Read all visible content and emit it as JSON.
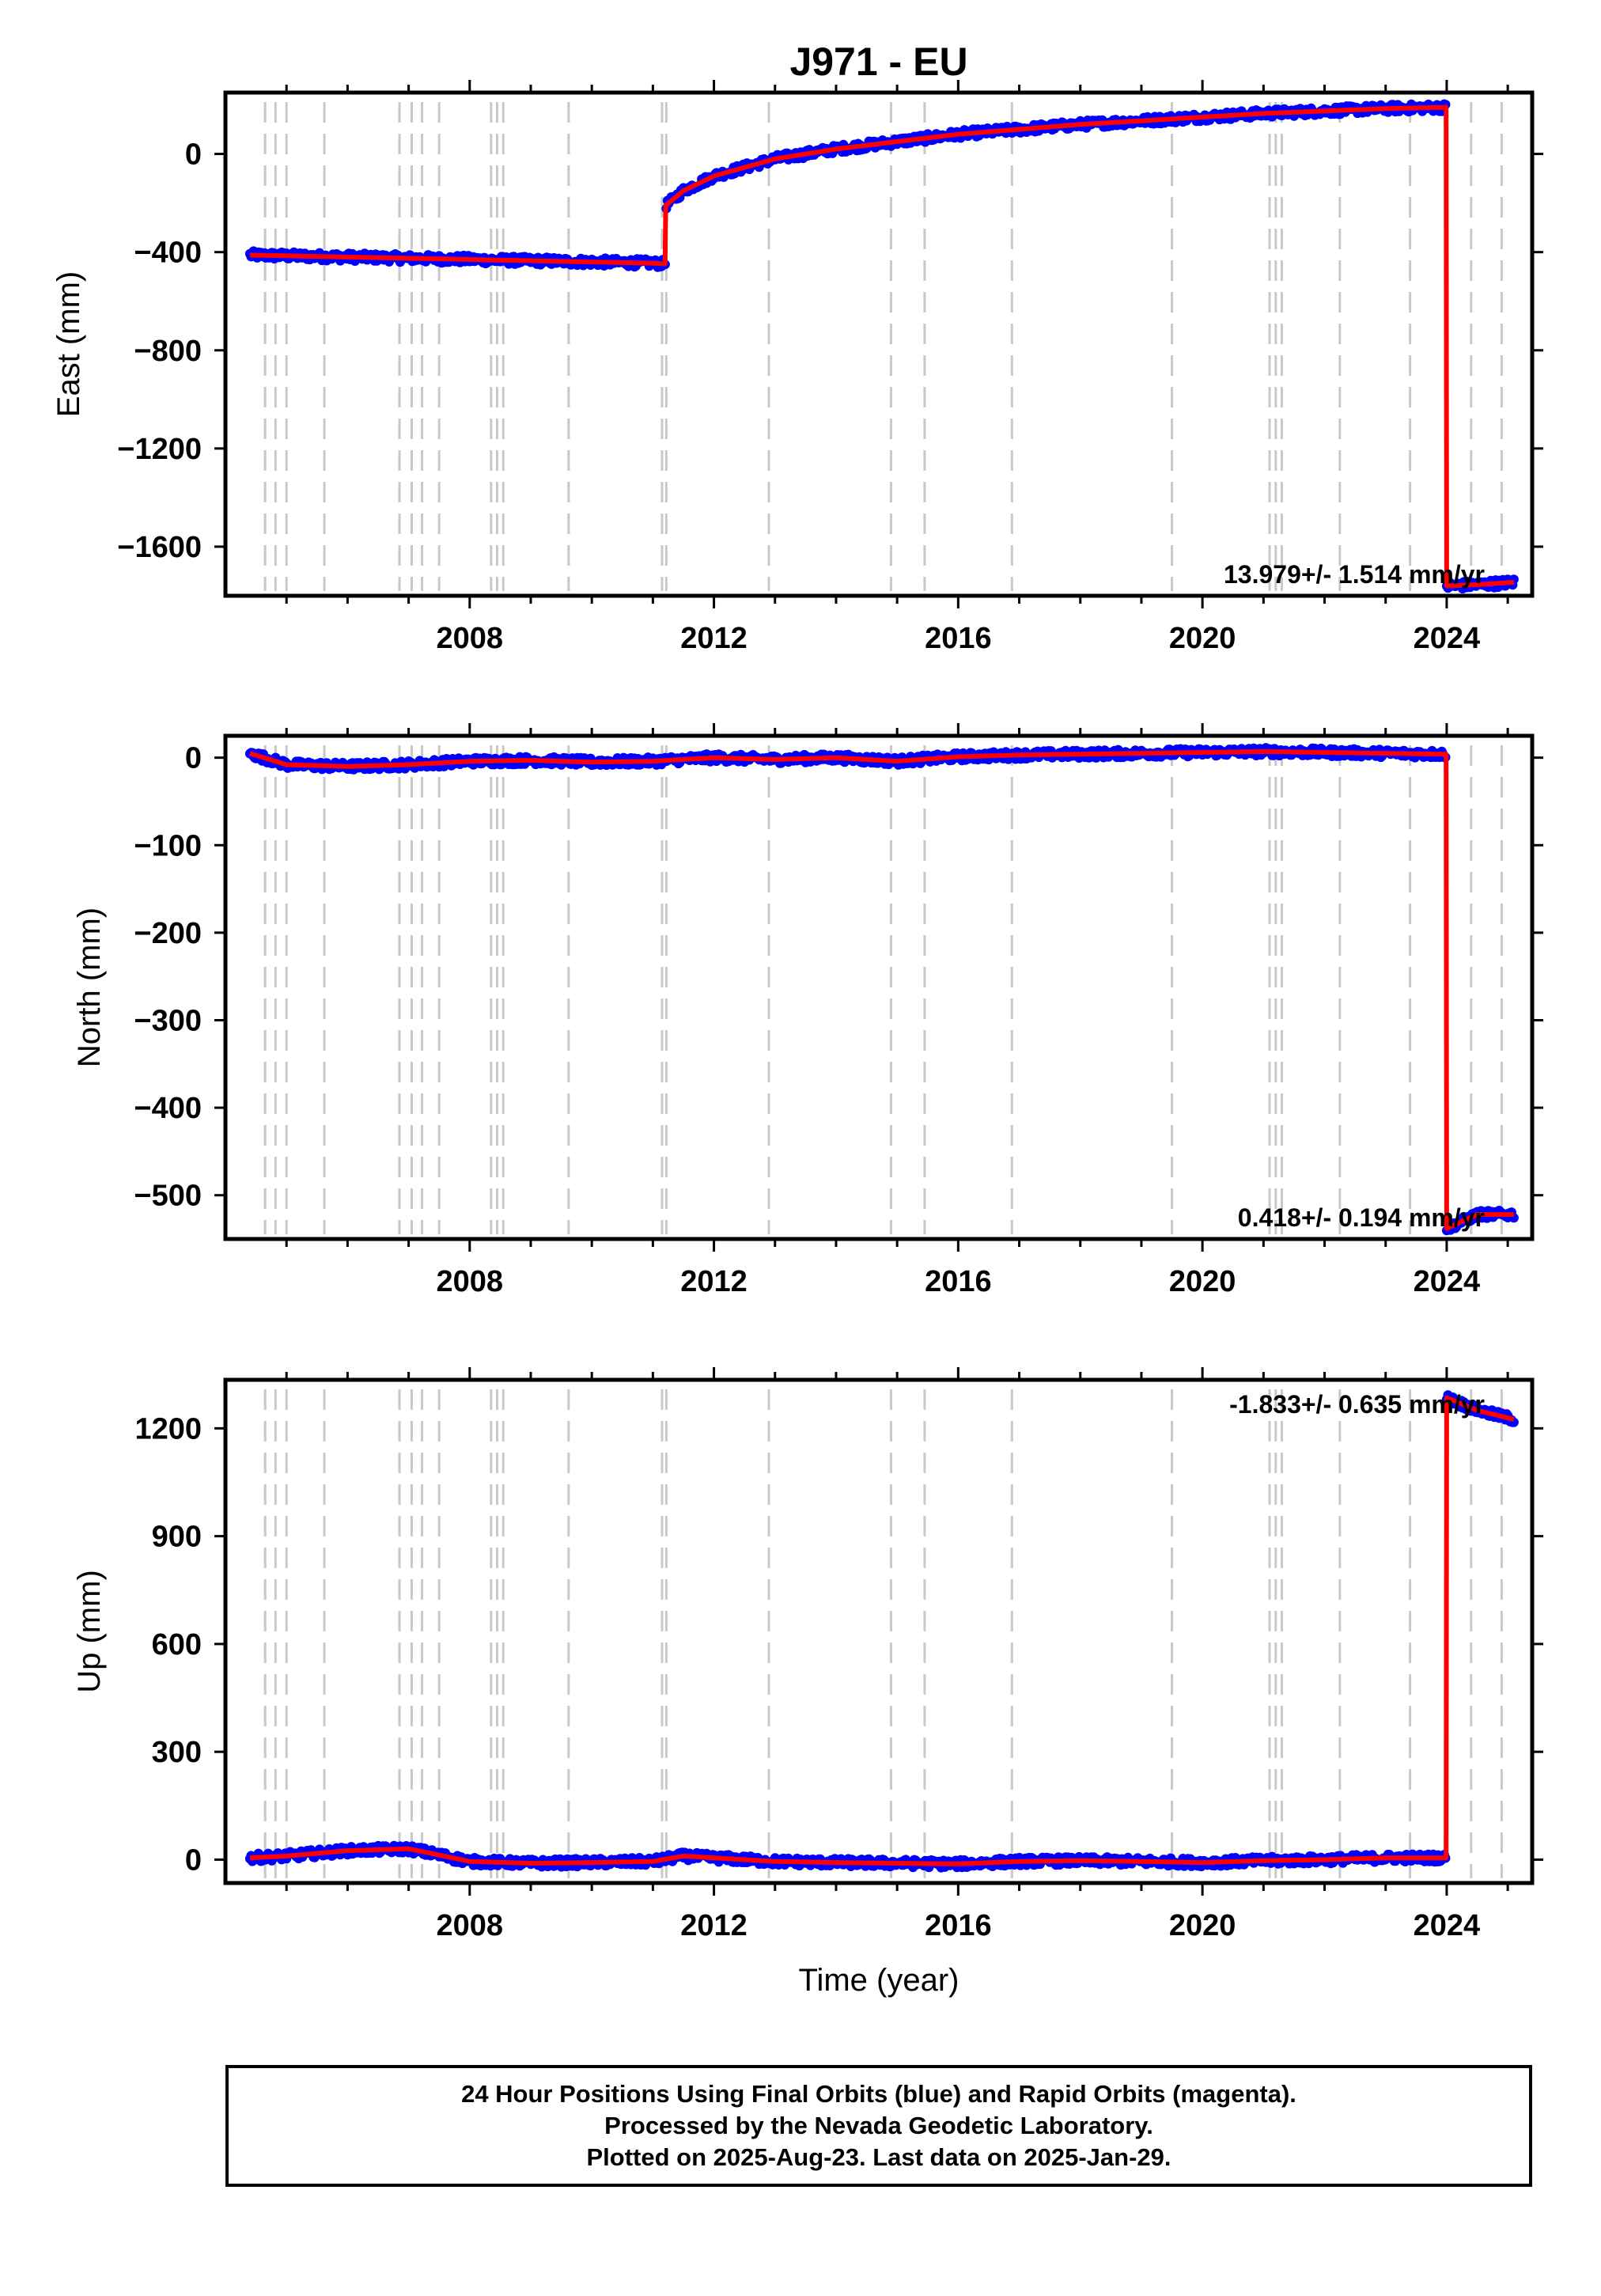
{
  "title": "J971 - EU",
  "chart_data": [
    {
      "type": "line",
      "id": "east",
      "ylabel": "East (mm)",
      "xlabel": "",
      "xlim": [
        2004.0,
        2025.4
      ],
      "ylim": [
        -1800,
        250
      ],
      "yticks": [
        0,
        -400,
        -800,
        -1200,
        -1600
      ],
      "ytick_labels": [
        "0",
        "−400",
        "−800",
        "−1200",
        "−1600"
      ],
      "xticks": [
        2008,
        2012,
        2016,
        2020,
        2024
      ],
      "xtick_labels": [
        "2008",
        "2012",
        "2016",
        "2020",
        "2024"
      ],
      "rate_label": "13.979+/- 1.514 mm/yr",
      "x": [
        2004.4,
        2005.0,
        2006.0,
        2007.0,
        2008.0,
        2009.0,
        2010.0,
        2011.0,
        2011.2,
        2011.21,
        2011.5,
        2012.0,
        2013.0,
        2014.0,
        2015.0,
        2016.0,
        2017.0,
        2018.0,
        2019.0,
        2020.0,
        2021.0,
        2022.0,
        2023.0,
        2023.99,
        2024.0,
        2024.5,
        2025.1
      ],
      "y": [
        -412,
        -415,
        -420,
        -425,
        -430,
        -435,
        -440,
        -445,
        -448,
        -210,
        -150,
        -90,
        -20,
        20,
        50,
        80,
        100,
        120,
        135,
        150,
        165,
        175,
        185,
        190,
        -1760,
        -1755,
        -1745
      ]
    },
    {
      "type": "line",
      "id": "north",
      "ylabel": "North (mm)",
      "xlabel": "",
      "xlim": [
        2004.0,
        2025.4
      ],
      "ylim": [
        -550,
        25
      ],
      "yticks": [
        0,
        -100,
        -200,
        -300,
        -400,
        -500
      ],
      "ytick_labels": [
        "0",
        "−100",
        "−200",
        "−300",
        "−400",
        "−500"
      ],
      "xticks": [
        2008,
        2012,
        2016,
        2020,
        2024
      ],
      "xtick_labels": [
        "2008",
        "2012",
        "2016",
        "2020",
        "2024"
      ],
      "rate_label": "0.418+/- 0.194 mm/yr",
      "x": [
        2004.4,
        2005.0,
        2006.0,
        2007.0,
        2008.0,
        2009.0,
        2010.0,
        2011.0,
        2012.0,
        2013.0,
        2014.0,
        2015.0,
        2016.0,
        2017.0,
        2018.0,
        2019.0,
        2020.0,
        2021.0,
        2022.0,
        2023.0,
        2023.99,
        2024.0,
        2024.5,
        2025.1
      ],
      "y": [
        5,
        -8,
        -10,
        -8,
        -4,
        -3,
        -5,
        -4,
        0,
        -2,
        0,
        -4,
        1,
        3,
        4,
        5,
        6,
        7,
        6,
        5,
        4,
        -538,
        -522,
        -522
      ]
    },
    {
      "type": "line",
      "id": "up",
      "ylabel": "Up (mm)",
      "xlabel": "Time (year)",
      "xlim": [
        2004.0,
        2025.4
      ],
      "ylim": [
        -65,
        1335
      ],
      "yticks": [
        0,
        300,
        600,
        900,
        1200
      ],
      "ytick_labels": [
        "0",
        "300",
        "600",
        "900",
        "1200"
      ],
      "xticks": [
        2008,
        2012,
        2016,
        2020,
        2024
      ],
      "xtick_labels": [
        "2008",
        "2012",
        "2016",
        "2020",
        "2024"
      ],
      "rate_label": "-1.833+/- 0.635 mm/yr",
      "x": [
        2004.4,
        2005.0,
        2006.0,
        2007.0,
        2007.3,
        2008.0,
        2009.0,
        2010.0,
        2011.0,
        2011.5,
        2012.0,
        2013.0,
        2014.0,
        2015.0,
        2016.0,
        2017.0,
        2018.0,
        2019.0,
        2020.0,
        2021.0,
        2022.0,
        2023.0,
        2023.99,
        2024.0,
        2024.5,
        2025.1
      ],
      "y": [
        5,
        10,
        25,
        30,
        20,
        -5,
        -10,
        -8,
        -5,
        10,
        5,
        -5,
        -8,
        -10,
        -12,
        -5,
        -3,
        -5,
        -8,
        -3,
        0,
        5,
        5,
        1285,
        1250,
        1225
      ]
    }
  ],
  "event_lines": [
    2004.65,
    2004.82,
    2005.0,
    2005.62,
    2006.85,
    2007.05,
    2007.22,
    2007.5,
    2008.35,
    2008.45,
    2008.55,
    2009.62,
    2011.15,
    2011.22,
    2012.9,
    2014.9,
    2015.45,
    2016.88,
    2019.5,
    2021.1,
    2021.2,
    2021.3,
    2022.25,
    2023.4,
    2024.4,
    2024.9
  ],
  "colors": {
    "final_orbits": "#0000ff",
    "rapid_orbits": "#ff00ff",
    "model_line": "#ff0000",
    "event_line": "#c8c8c8"
  },
  "footer": {
    "line1": "24 Hour Positions Using Final Orbits (blue) and Rapid Orbits (magenta).",
    "line2": "Processed by the Nevada Geodetic Laboratory.",
    "line3": "Plotted on 2025-Aug-23. Last data on 2025-Jan-29."
  }
}
